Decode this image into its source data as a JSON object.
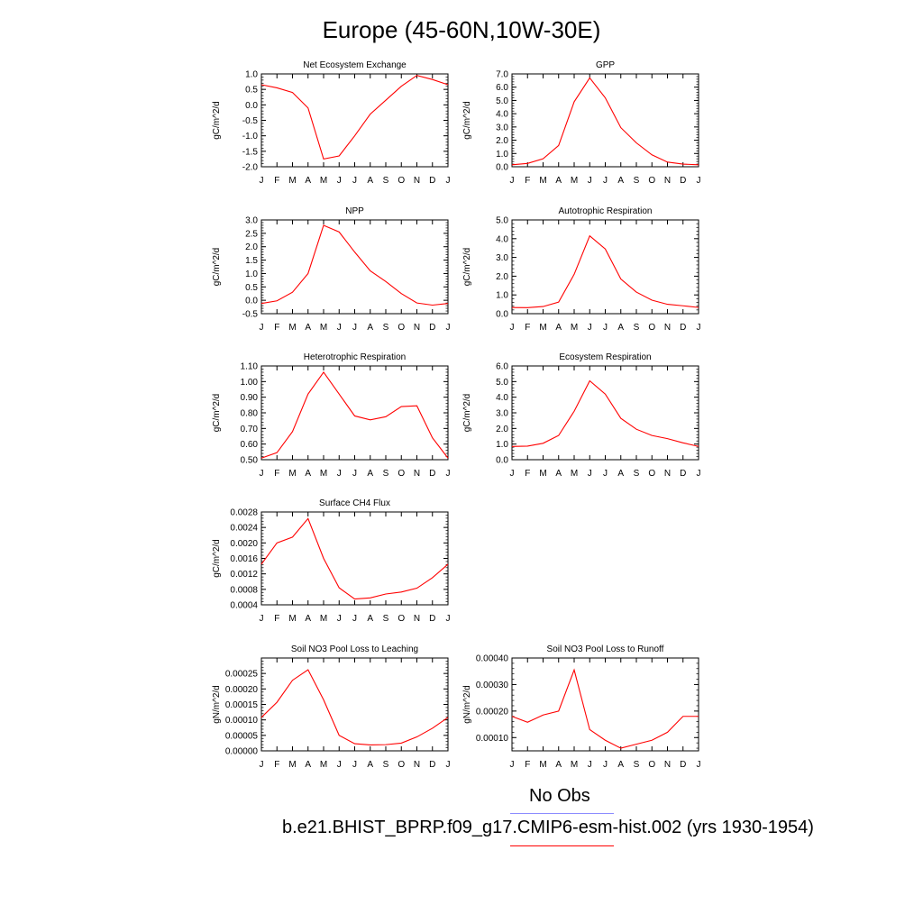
{
  "title": "Europe (45-60N,10W-30E)",
  "colors": {
    "model": "#ff0000",
    "obs": "#8c8cff",
    "axis": "#000000"
  },
  "legend": {
    "obs_label": "No Obs",
    "model_label": "b.e21.BHIST_BPRP.f09_g17.CMIP6-esm-hist.002 (yrs 1930-1954)"
  },
  "months": [
    "J",
    "F",
    "M",
    "A",
    "M",
    "J",
    "J",
    "A",
    "S",
    "O",
    "N",
    "D",
    "J"
  ],
  "chart_data": [
    {
      "type": "line",
      "title": "Net Ecosystem Exchange",
      "ylabel": "gC/m^2/d",
      "ylim": [
        -2.0,
        1.0
      ],
      "yticks": [
        -2.0,
        -1.5,
        -1.0,
        -0.5,
        0.0,
        0.5,
        1.0
      ],
      "ytick_labels": [
        "-2.0",
        "-1.5",
        "-1.0",
        "-0.5",
        "0.0",
        "0.5",
        "1.0"
      ],
      "values": [
        0.65,
        0.55,
        0.4,
        -0.1,
        -1.75,
        -1.65,
        -1.0,
        -0.3,
        0.15,
        0.6,
        0.95,
        0.82,
        0.65
      ]
    },
    {
      "type": "line",
      "title": "GPP",
      "ylabel": "gC/m^2/d",
      "ylim": [
        0.0,
        7.0
      ],
      "yticks": [
        0,
        1,
        2,
        3,
        4,
        5,
        6,
        7
      ],
      "ytick_labels": [
        "0.0",
        "1.0",
        "2.0",
        "3.0",
        "4.0",
        "5.0",
        "6.0",
        "7.0"
      ],
      "values": [
        0.15,
        0.25,
        0.6,
        1.6,
        4.9,
        6.7,
        5.2,
        2.95,
        1.8,
        0.9,
        0.35,
        0.2,
        0.15
      ]
    },
    {
      "type": "line",
      "title": "NPP",
      "ylabel": "gC/m^2/d",
      "ylim": [
        -0.5,
        3.0
      ],
      "yticks": [
        -0.5,
        0,
        0.5,
        1,
        1.5,
        2,
        2.5,
        3
      ],
      "ytick_labels": [
        "-0.5",
        "0.0",
        "0.5",
        "1.0",
        "1.5",
        "2.0",
        "2.5",
        "3.0"
      ],
      "values": [
        -0.12,
        -0.02,
        0.3,
        1.0,
        2.8,
        2.55,
        1.8,
        1.1,
        0.7,
        0.25,
        -0.1,
        -0.18,
        -0.12
      ]
    },
    {
      "type": "line",
      "title": "Autotrophic Respiration",
      "ylabel": "gC/m^2/d",
      "ylim": [
        0.0,
        5.0
      ],
      "yticks": [
        0,
        1,
        2,
        3,
        4,
        5
      ],
      "ytick_labels": [
        "0.0",
        "1.0",
        "2.0",
        "3.0",
        "4.0",
        "5.0"
      ],
      "values": [
        0.33,
        0.32,
        0.38,
        0.62,
        2.1,
        4.15,
        3.45,
        1.85,
        1.15,
        0.72,
        0.5,
        0.42,
        0.33
      ]
    },
    {
      "type": "line",
      "title": "Heterotrophic Respiration",
      "ylabel": "gC/m^2/d",
      "ylim": [
        0.5,
        1.1
      ],
      "yticks": [
        0.5,
        0.6,
        0.7,
        0.8,
        0.9,
        1.0,
        1.1
      ],
      "ytick_labels": [
        "0.50",
        "0.60",
        "0.70",
        "0.80",
        "0.90",
        "1.00",
        "1.10"
      ],
      "values": [
        0.51,
        0.545,
        0.68,
        0.92,
        1.06,
        0.92,
        0.78,
        0.755,
        0.775,
        0.84,
        0.845,
        0.64,
        0.51
      ]
    },
    {
      "type": "line",
      "title": "Ecosystem Respiration",
      "ylabel": "gC/m^2/d",
      "ylim": [
        0.0,
        6.0
      ],
      "yticks": [
        0,
        1,
        2,
        3,
        4,
        5,
        6
      ],
      "ytick_labels": [
        "0.0",
        "1.0",
        "2.0",
        "3.0",
        "4.0",
        "5.0",
        "6.0"
      ],
      "values": [
        0.85,
        0.87,
        1.05,
        1.55,
        3.1,
        5.05,
        4.2,
        2.65,
        1.95,
        1.55,
        1.35,
        1.08,
        0.85
      ]
    },
    {
      "type": "line",
      "title": "Surface CH4 Flux",
      "ylabel": "gC/m^2/d",
      "ylim": [
        0.0004,
        0.0028
      ],
      "yticks": [
        0.0004,
        0.0008,
        0.0012,
        0.0016,
        0.002,
        0.0024,
        0.0028
      ],
      "ytick_labels": [
        "0.0004",
        "0.0008",
        "0.0012",
        "0.0016",
        "0.0020",
        "0.0024",
        "0.0028"
      ],
      "values": [
        0.00145,
        0.002,
        0.00215,
        0.00263,
        0.0016,
        0.00084,
        0.00055,
        0.00058,
        0.00068,
        0.00073,
        0.00083,
        0.0011,
        0.00145
      ]
    },
    {
      "type": "line",
      "title": "Soil NO3 Pool Loss to Leaching",
      "ylabel": "gN/m^2/d",
      "ylim": [
        0.0,
        0.0003
      ],
      "yticks": [
        0,
        5e-05,
        0.0001,
        0.00015,
        0.0002,
        0.00025
      ],
      "ytick_labels": [
        "0.00000",
        "0.00005",
        "0.00010",
        "0.00015",
        "0.00020",
        "0.00025"
      ],
      "values": [
        0.000108,
        0.000157,
        0.000228,
        0.000262,
        0.000165,
        5e-05,
        2.3e-05,
        1.9e-05,
        2e-05,
        2.5e-05,
        4.5e-05,
        7.3e-05,
        0.000108
      ]
    },
    {
      "type": "line",
      "title": "Soil NO3 Pool Loss to Runoff",
      "ylabel": "gN/m^2/d",
      "ylim": [
        5e-05,
        0.0004
      ],
      "yticks": [
        0.0001,
        0.0002,
        0.0003,
        0.0004
      ],
      "ytick_labels": [
        "0.00010",
        "0.00020",
        "0.00030",
        "0.00040"
      ],
      "values": [
        0.00018,
        0.000158,
        0.000185,
        0.0002,
        0.000355,
        0.00013,
        9e-05,
        6e-05,
        7.5e-05,
        9e-05,
        0.00012,
        0.00018,
        0.00018
      ]
    }
  ]
}
